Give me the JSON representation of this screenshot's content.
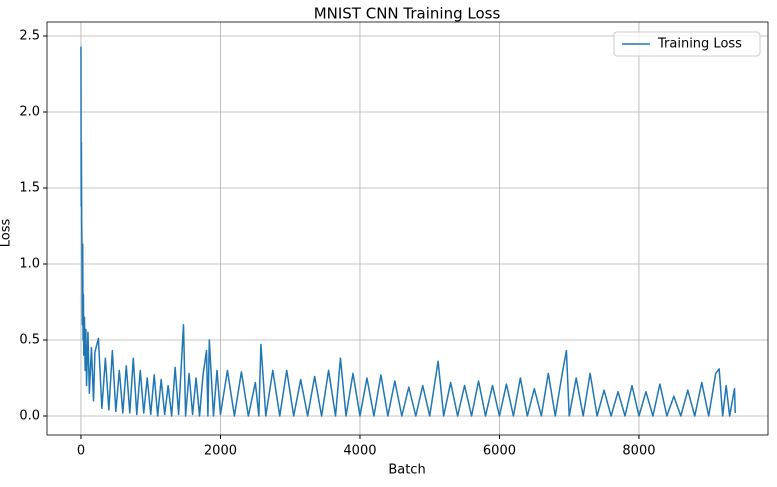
{
  "chart_data": {
    "type": "line",
    "title": "MNIST CNN Training Loss",
    "x_label": "Batch",
    "y_label": "Loss",
    "x": [
      0,
      3,
      6,
      10,
      15,
      20,
      25,
      30,
      35,
      40,
      50,
      60,
      70,
      80,
      100,
      120,
      150,
      180,
      200,
      250,
      300,
      350,
      400,
      450,
      500,
      550,
      600,
      650,
      700,
      750,
      800,
      850,
      900,
      950,
      1000,
      1050,
      1100,
      1150,
      1200,
      1250,
      1300,
      1350,
      1400,
      1470,
      1500,
      1550,
      1600,
      1650,
      1700,
      1750,
      1800,
      1820,
      1840,
      1900,
      1950,
      2000,
      2100,
      2200,
      2300,
      2400,
      2500,
      2550,
      2580,
      2650,
      2750,
      2850,
      2950,
      3050,
      3150,
      3250,
      3350,
      3450,
      3550,
      3650,
      3720,
      3800,
      3900,
      4000,
      4100,
      4200,
      4300,
      4400,
      4500,
      4600,
      4700,
      4800,
      4900,
      5000,
      5120,
      5200,
      5300,
      5400,
      5500,
      5600,
      5700,
      5800,
      5900,
      6000,
      6100,
      6200,
      6300,
      6400,
      6500,
      6600,
      6700,
      6800,
      6900,
      6960,
      7000,
      7100,
      7200,
      7300,
      7400,
      7500,
      7600,
      7700,
      7800,
      7900,
      8000,
      8100,
      8200,
      8300,
      8400,
      8500,
      8600,
      8700,
      8800,
      8900,
      9000,
      9100,
      9150,
      9200,
      9250,
      9300,
      9370,
      9380
    ],
    "series": [
      {
        "name": "Training Loss",
        "color": "#1f77b4",
        "values": [
          2.43,
          1.38,
          1.8,
          1.28,
          1.1,
          0.6,
          1.13,
          0.5,
          0.8,
          0.4,
          0.65,
          0.3,
          0.57,
          0.2,
          0.55,
          0.15,
          0.45,
          0.1,
          0.42,
          0.51,
          0.05,
          0.38,
          0.04,
          0.43,
          0.03,
          0.3,
          0.02,
          0.33,
          0.02,
          0.38,
          0.01,
          0.3,
          0.02,
          0.25,
          0.01,
          0.27,
          0.0,
          0.24,
          0.01,
          0.2,
          0.0,
          0.32,
          0.01,
          0.6,
          0.0,
          0.28,
          0.01,
          0.25,
          0.0,
          0.27,
          0.43,
          0.0,
          0.5,
          0.0,
          0.3,
          0.01,
          0.3,
          0.0,
          0.29,
          0.0,
          0.22,
          0.0,
          0.47,
          0.0,
          0.3,
          0.0,
          0.3,
          0.0,
          0.24,
          0.0,
          0.26,
          0.0,
          0.3,
          0.0,
          0.38,
          0.0,
          0.28,
          0.0,
          0.25,
          0.0,
          0.27,
          0.0,
          0.23,
          0.0,
          0.19,
          0.0,
          0.2,
          0.0,
          0.36,
          0.0,
          0.22,
          0.0,
          0.2,
          0.0,
          0.23,
          0.0,
          0.2,
          0.0,
          0.21,
          0.0,
          0.25,
          0.0,
          0.18,
          0.0,
          0.28,
          0.0,
          0.28,
          0.43,
          0.0,
          0.25,
          0.0,
          0.28,
          0.0,
          0.17,
          0.0,
          0.16,
          0.0,
          0.2,
          0.0,
          0.16,
          0.0,
          0.21,
          0.0,
          0.13,
          0.0,
          0.17,
          0.0,
          0.22,
          0.0,
          0.28,
          0.31,
          0.0,
          0.2,
          0.0,
          0.18,
          0.02
        ]
      }
    ],
    "xlim": [
      -487,
      9850
    ],
    "ylim": [
      -0.125,
      2.592
    ],
    "xticks": [
      0,
      2000,
      4000,
      6000,
      8000
    ],
    "yticks": [
      {
        "value": 0,
        "label": "0.0"
      },
      0.5,
      {
        "value": 1,
        "label": "1.0"
      },
      1.5,
      {
        "value": 2,
        "label": "2.0"
      },
      2.5
    ],
    "grid": true,
    "legend": "upper right"
  }
}
